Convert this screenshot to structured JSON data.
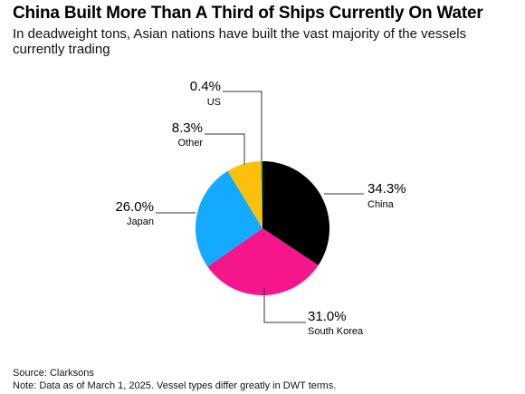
{
  "header": {
    "title": "China Built More Than A Third of Ships Currently On Water",
    "subtitle": "In deadweight tons, Asian nations have built the vast majority of the vessels currently trading"
  },
  "footer": {
    "source": "Source: Clarksons",
    "note": "Note: Data as of March 1, 2025. Vessel types differ greatly in DWT terms."
  },
  "chart_data": {
    "type": "pie",
    "slices": [
      {
        "name": "China",
        "value": 34.3,
        "label": "34.3%",
        "color": "#000000"
      },
      {
        "name": "South Korea",
        "value": 31.0,
        "label": "31.0%",
        "color": "#f5168c"
      },
      {
        "name": "Japan",
        "value": 26.0,
        "label": "26.0%",
        "color": "#14aaff"
      },
      {
        "name": "Other",
        "value": 8.3,
        "label": "8.3%",
        "color": "#fdc00a"
      },
      {
        "name": "US",
        "value": 0.4,
        "label": "0.4%",
        "color": "#2aa84a"
      }
    ],
    "start_angle": "12 o'clock",
    "direction": "clockwise"
  }
}
